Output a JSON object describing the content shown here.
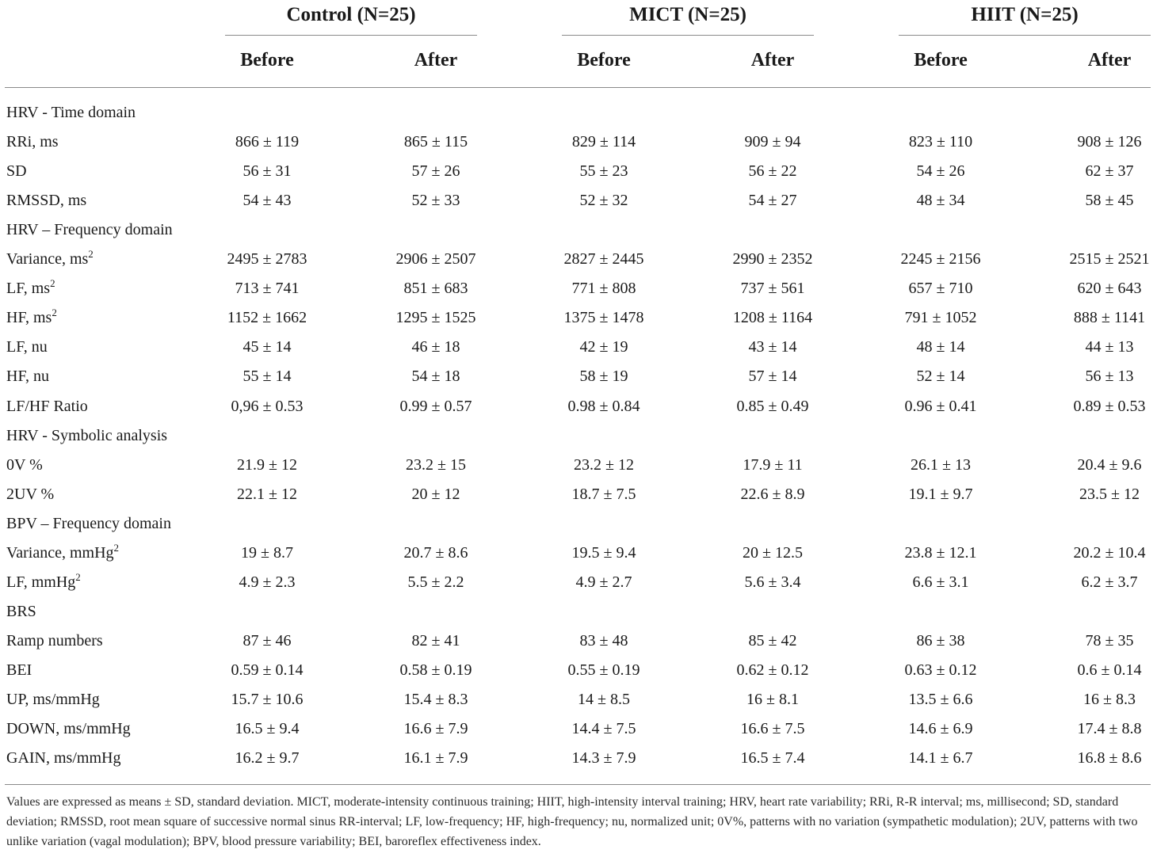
{
  "groups": [
    {
      "name": "Control (N=25)",
      "before": "Before",
      "after": "After"
    },
    {
      "name": "MICT (N=25)",
      "before": "Before",
      "after": "After"
    },
    {
      "name": "HIIT (N=25)",
      "before": "Before",
      "after": "After"
    }
  ],
  "rows": [
    {
      "label": "HRV - Time domain",
      "section": true
    },
    {
      "label": "RRi, ms",
      "values": [
        "866 ± 119",
        "865 ± 115",
        "829 ± 114",
        "909 ± 94",
        "823 ± 110",
        "908 ± 126"
      ]
    },
    {
      "label": "SD",
      "values": [
        "56 ± 31",
        "57 ± 26",
        "55 ± 23",
        "56 ± 22",
        "54 ± 26",
        "62 ± 37"
      ]
    },
    {
      "label": "RMSSD, ms",
      "values": [
        "54 ± 43",
        "52 ± 33",
        "52 ± 32",
        "54 ± 27",
        "48 ± 34",
        "58 ± 45"
      ]
    },
    {
      "label": "HRV – Frequency domain",
      "section": true
    },
    {
      "label": "Variance, ms",
      "sup": "2",
      "values": [
        "2495 ± 2783",
        "2906 ± 2507",
        "2827 ± 2445",
        "2990 ± 2352",
        "2245 ± 2156",
        "2515 ± 2521"
      ]
    },
    {
      "label": "LF, ms",
      "sup": "2",
      "values": [
        "713 ± 741",
        "851 ± 683",
        "771 ± 808",
        "737 ± 561",
        "657 ± 710",
        "620 ± 643"
      ]
    },
    {
      "label": "HF, ms",
      "sup": "2",
      "values": [
        "1152 ± 1662",
        "1295 ± 1525",
        "1375 ± 1478",
        "1208 ± 1164",
        "791 ± 1052",
        "888 ± 1141"
      ]
    },
    {
      "label": "LF, nu",
      "values": [
        "45 ± 14",
        "46 ± 18",
        "42 ± 19",
        "43 ± 14",
        "48 ± 14",
        "44 ± 13"
      ]
    },
    {
      "label": "HF, nu",
      "values": [
        "55 ± 14",
        "54 ± 18",
        "58 ± 19",
        "57 ± 14",
        "52 ± 14",
        "56 ± 13"
      ]
    },
    {
      "label": "LF/HF Ratio",
      "values": [
        "0,96 ± 0.53",
        "0.99 ± 0.57",
        "0.98 ± 0.84",
        "0.85 ± 0.49",
        "0.96 ± 0.41",
        "0.89 ± 0.53"
      ]
    },
    {
      "label": "HRV - Symbolic analysis",
      "section": true
    },
    {
      "label": "0V %",
      "values": [
        "21.9 ± 12",
        "23.2 ± 15",
        "23.2 ± 12",
        "17.9 ± 11",
        "26.1 ± 13",
        "20.4 ± 9.6"
      ]
    },
    {
      "label": "2UV %",
      "values": [
        "22.1 ± 12",
        "20 ± 12",
        "18.7 ± 7.5",
        "22.6 ± 8.9",
        "19.1 ± 9.7",
        "23.5 ± 12"
      ]
    },
    {
      "label": "BPV – Frequency domain",
      "section": true
    },
    {
      "label": "Variance, mmHg",
      "sup": "2",
      "values": [
        "19 ± 8.7",
        "20.7 ± 8.6",
        "19.5 ± 9.4",
        "20 ± 12.5",
        "23.8 ± 12.1",
        "20.2 ± 10.4"
      ]
    },
    {
      "label": "LF, mmHg",
      "sup": "2",
      "values": [
        "4.9 ± 2.3",
        "5.5 ± 2.2",
        "4.9 ± 2.7",
        "5.6 ± 3.4",
        "6.6 ± 3.1",
        "6.2 ± 3.7"
      ]
    },
    {
      "label": "BRS",
      "section": true
    },
    {
      "label": "Ramp numbers",
      "values": [
        "87 ± 46",
        "82 ± 41",
        "83 ± 48",
        "85 ± 42",
        "86 ± 38",
        "78 ± 35"
      ]
    },
    {
      "label": "BEI",
      "values": [
        "0.59 ± 0.14",
        "0.58 ± 0.19",
        "0.55 ± 0.19",
        "0.62 ± 0.12",
        "0.63 ± 0.12",
        "0.6 ± 0.14"
      ]
    },
    {
      "label": "UP, ms/mmHg",
      "values": [
        "15.7 ± 10.6",
        "15.4 ± 8.3",
        "14 ± 8.5",
        "16 ± 8.1",
        "13.5 ± 6.6",
        "16 ± 8.3"
      ]
    },
    {
      "label": "DOWN, ms/mmHg",
      "values": [
        "16.5 ± 9.4",
        "16.6 ± 7.9",
        "14.4 ± 7.5",
        "16.6 ± 7.5",
        "14.6 ± 6.9",
        "17.4 ± 8.8"
      ]
    },
    {
      "label": "GAIN, ms/mmHg",
      "values": [
        "16.2 ± 9.7",
        "16.1 ± 7.9",
        "14.3 ± 7.9",
        "16.5 ± 7.4",
        "14.1 ± 6.7",
        "16.8 ± 8.6"
      ]
    }
  ],
  "footnote": "Values are expressed as means ± SD, standard deviation. MICT, moderate-intensity continuous training; HIIT, high-intensity interval training; HRV, heart rate variability; RRi, R-R interval; ms, millisecond; SD, standard deviation; RMSSD, root mean square of successive normal sinus RR-interval; LF, low-frequency; HF, high-frequency; nu, normalized unit; 0V%, patterns with no variation (sympathetic modulation); 2UV, patterns with two unlike variation (vagal modulation); BPV, blood pressure variability; BEI, baroreflex effectiveness index."
}
